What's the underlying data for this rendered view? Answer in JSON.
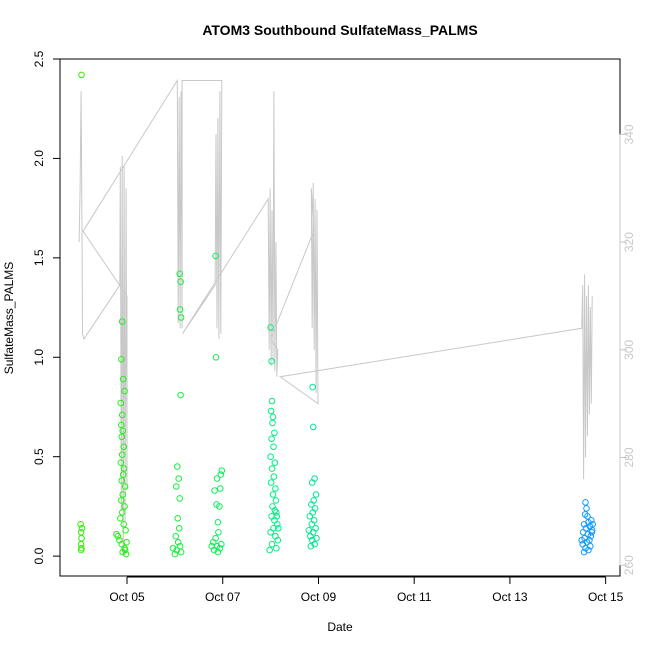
{
  "chart_data": {
    "type": "scatter",
    "title": "ATOM3 Southbound SulfateMass_PALMS",
    "xlabel": "Date",
    "ylabel": "SulfateMass_PALMS",
    "x_axis": {
      "unit": "days since Oct 01",
      "range": [
        3.6,
        15.3
      ],
      "ticks": [
        {
          "value": 5,
          "label": "Oct 05"
        },
        {
          "value": 7,
          "label": "Oct 07"
        },
        {
          "value": 9,
          "label": "Oct 09"
        },
        {
          "value": 11,
          "label": "Oct 11"
        },
        {
          "value": 13,
          "label": "Oct 13"
        },
        {
          "value": 15,
          "label": "Oct 15"
        }
      ]
    },
    "y_axis_left": {
      "range": [
        -0.1,
        2.5
      ],
      "ticks": [
        {
          "value": 0.0,
          "label": "0.0"
        },
        {
          "value": 0.5,
          "label": "0.5"
        },
        {
          "value": 1.0,
          "label": "1.0"
        },
        {
          "value": 1.5,
          "label": "1.5"
        },
        {
          "value": 2.0,
          "label": "2.0"
        },
        {
          "value": 2.5,
          "label": "2.5"
        }
      ]
    },
    "y_axis_right": {
      "range": [
        258,
        354
      ],
      "color": "#c8c8c8",
      "ticks": [
        {
          "value": 260,
          "label": "260"
        },
        {
          "value": 280,
          "label": "280"
        },
        {
          "value": 300,
          "label": "300"
        },
        {
          "value": 320,
          "label": "320"
        },
        {
          "value": 340,
          "label": "340"
        }
      ]
    },
    "grid": false,
    "colors": {
      "early": "#33ee00",
      "mid": "#00ee88",
      "late": "#1199ff",
      "secondary_line": "#c8c8c8",
      "axis": "#000000"
    },
    "sulfate_points": [
      {
        "x": 4.05,
        "y": 2.42
      },
      {
        "x": 4.03,
        "y": 0.16
      },
      {
        "x": 4.04,
        "y": 0.12
      },
      {
        "x": 4.05,
        "y": 0.09
      },
      {
        "x": 4.04,
        "y": 0.06
      },
      {
        "x": 4.05,
        "y": 0.04
      },
      {
        "x": 4.06,
        "y": 0.14
      },
      {
        "x": 4.04,
        "y": 0.03
      },
      {
        "x": 4.9,
        "y": 1.18
      },
      {
        "x": 4.88,
        "y": 0.99
      },
      {
        "x": 4.92,
        "y": 0.89
      },
      {
        "x": 4.95,
        "y": 0.83
      },
      {
        "x": 4.87,
        "y": 0.77
      },
      {
        "x": 4.9,
        "y": 0.71
      },
      {
        "x": 4.88,
        "y": 0.66
      },
      {
        "x": 4.91,
        "y": 0.63
      },
      {
        "x": 4.89,
        "y": 0.6
      },
      {
        "x": 4.93,
        "y": 0.55
      },
      {
        "x": 4.9,
        "y": 0.51
      },
      {
        "x": 4.87,
        "y": 0.47
      },
      {
        "x": 4.94,
        "y": 0.44
      },
      {
        "x": 4.92,
        "y": 0.41
      },
      {
        "x": 4.89,
        "y": 0.38
      },
      {
        "x": 4.96,
        "y": 0.35
      },
      {
        "x": 4.91,
        "y": 0.31
      },
      {
        "x": 4.88,
        "y": 0.28
      },
      {
        "x": 4.95,
        "y": 0.25
      },
      {
        "x": 4.9,
        "y": 0.22
      },
      {
        "x": 4.86,
        "y": 0.19
      },
      {
        "x": 4.93,
        "y": 0.16
      },
      {
        "x": 4.97,
        "y": 0.13
      },
      {
        "x": 4.81,
        "y": 0.1
      },
      {
        "x": 4.84,
        "y": 0.08
      },
      {
        "x": 4.89,
        "y": 0.06
      },
      {
        "x": 4.95,
        "y": 0.04
      },
      {
        "x": 4.91,
        "y": 0.02
      },
      {
        "x": 4.98,
        "y": 0.01
      },
      {
        "x": 4.78,
        "y": 0.11
      },
      {
        "x": 4.99,
        "y": 0.07
      },
      {
        "x": 4.96,
        "y": 0.03
      },
      {
        "x": 6.1,
        "y": 1.42
      },
      {
        "x": 6.12,
        "y": 1.38
      },
      {
        "x": 6.11,
        "y": 1.24
      },
      {
        "x": 6.13,
        "y": 1.2
      },
      {
        "x": 6.12,
        "y": 0.81
      },
      {
        "x": 6.05,
        "y": 0.45
      },
      {
        "x": 6.08,
        "y": 0.39
      },
      {
        "x": 6.03,
        "y": 0.35
      },
      {
        "x": 6.1,
        "y": 0.29
      },
      {
        "x": 6.06,
        "y": 0.19
      },
      {
        "x": 6.09,
        "y": 0.14
      },
      {
        "x": 6.02,
        "y": 0.1
      },
      {
        "x": 6.07,
        "y": 0.07
      },
      {
        "x": 6.11,
        "y": 0.05
      },
      {
        "x": 6.04,
        "y": 0.03
      },
      {
        "x": 6.0,
        "y": 0.01
      },
      {
        "x": 6.13,
        "y": 0.02
      },
      {
        "x": 5.96,
        "y": 0.04
      },
      {
        "x": 6.85,
        "y": 1.51
      },
      {
        "x": 6.86,
        "y": 1.0
      },
      {
        "x": 6.98,
        "y": 0.43
      },
      {
        "x": 6.96,
        "y": 0.41
      },
      {
        "x": 6.88,
        "y": 0.39
      },
      {
        "x": 6.95,
        "y": 0.34
      },
      {
        "x": 6.83,
        "y": 0.33
      },
      {
        "x": 6.87,
        "y": 0.26
      },
      {
        "x": 6.93,
        "y": 0.25
      },
      {
        "x": 6.9,
        "y": 0.17
      },
      {
        "x": 6.91,
        "y": 0.12
      },
      {
        "x": 6.85,
        "y": 0.09
      },
      {
        "x": 6.8,
        "y": 0.07
      },
      {
        "x": 6.88,
        "y": 0.05
      },
      {
        "x": 6.94,
        "y": 0.04
      },
      {
        "x": 6.82,
        "y": 0.03
      },
      {
        "x": 6.9,
        "y": 0.02
      },
      {
        "x": 6.97,
        "y": 0.06
      },
      {
        "x": 6.77,
        "y": 0.05
      },
      {
        "x": 8.0,
        "y": 1.15
      },
      {
        "x": 8.02,
        "y": 0.98
      },
      {
        "x": 8.03,
        "y": 0.78
      },
      {
        "x": 8.01,
        "y": 0.73
      },
      {
        "x": 8.05,
        "y": 0.7
      },
      {
        "x": 8.04,
        "y": 0.67
      },
      {
        "x": 8.08,
        "y": 0.62
      },
      {
        "x": 8.02,
        "y": 0.59
      },
      {
        "x": 8.06,
        "y": 0.55
      },
      {
        "x": 8.0,
        "y": 0.5
      },
      {
        "x": 8.09,
        "y": 0.47
      },
      {
        "x": 8.03,
        "y": 0.44
      },
      {
        "x": 8.07,
        "y": 0.4
      },
      {
        "x": 8.01,
        "y": 0.37
      },
      {
        "x": 8.1,
        "y": 0.34
      },
      {
        "x": 8.05,
        "y": 0.31
      },
      {
        "x": 8.11,
        "y": 0.28
      },
      {
        "x": 8.04,
        "y": 0.25
      },
      {
        "x": 8.12,
        "y": 0.22
      },
      {
        "x": 8.02,
        "y": 0.2
      },
      {
        "x": 8.08,
        "y": 0.18
      },
      {
        "x": 8.14,
        "y": 0.16
      },
      {
        "x": 8.06,
        "y": 0.14
      },
      {
        "x": 8.0,
        "y": 0.12
      },
      {
        "x": 8.1,
        "y": 0.1
      },
      {
        "x": 8.15,
        "y": 0.08
      },
      {
        "x": 8.03,
        "y": 0.06
      },
      {
        "x": 8.12,
        "y": 0.04
      },
      {
        "x": 7.98,
        "y": 0.03
      },
      {
        "x": 8.16,
        "y": 0.14
      },
      {
        "x": 8.13,
        "y": 0.2
      },
      {
        "x": 8.09,
        "y": 0.23
      },
      {
        "x": 8.88,
        "y": 0.85
      },
      {
        "x": 8.89,
        "y": 0.65
      },
      {
        "x": 8.92,
        "y": 0.39
      },
      {
        "x": 8.87,
        "y": 0.37
      },
      {
        "x": 8.95,
        "y": 0.31
      },
      {
        "x": 8.9,
        "y": 0.28
      },
      {
        "x": 8.85,
        "y": 0.26
      },
      {
        "x": 8.93,
        "y": 0.24
      },
      {
        "x": 8.88,
        "y": 0.22
      },
      {
        "x": 8.82,
        "y": 0.2
      },
      {
        "x": 8.91,
        "y": 0.18
      },
      {
        "x": 8.86,
        "y": 0.16
      },
      {
        "x": 8.94,
        "y": 0.14
      },
      {
        "x": 8.8,
        "y": 0.13
      },
      {
        "x": 8.89,
        "y": 0.12
      },
      {
        "x": 8.83,
        "y": 0.1
      },
      {
        "x": 8.96,
        "y": 0.09
      },
      {
        "x": 8.87,
        "y": 0.08
      },
      {
        "x": 8.92,
        "y": 0.06
      },
      {
        "x": 8.84,
        "y": 0.05
      },
      {
        "x": 14.58,
        "y": 0.27
      },
      {
        "x": 14.6,
        "y": 0.24
      },
      {
        "x": 14.57,
        "y": 0.21
      },
      {
        "x": 14.62,
        "y": 0.2
      },
      {
        "x": 14.7,
        "y": 0.18
      },
      {
        "x": 14.64,
        "y": 0.17
      },
      {
        "x": 14.55,
        "y": 0.16
      },
      {
        "x": 14.67,
        "y": 0.15
      },
      {
        "x": 14.59,
        "y": 0.14
      },
      {
        "x": 14.72,
        "y": 0.13
      },
      {
        "x": 14.53,
        "y": 0.12
      },
      {
        "x": 14.63,
        "y": 0.11
      },
      {
        "x": 14.69,
        "y": 0.1
      },
      {
        "x": 14.56,
        "y": 0.09
      },
      {
        "x": 14.66,
        "y": 0.08
      },
      {
        "x": 14.61,
        "y": 0.07
      },
      {
        "x": 14.52,
        "y": 0.06
      },
      {
        "x": 14.68,
        "y": 0.05
      },
      {
        "x": 14.58,
        "y": 0.04
      },
      {
        "x": 14.64,
        "y": 0.03
      },
      {
        "x": 14.55,
        "y": 0.02
      },
      {
        "x": 14.71,
        "y": 0.12
      },
      {
        "x": 14.5,
        "y": 0.08
      },
      {
        "x": 14.73,
        "y": 0.16
      }
    ],
    "secondary_line": [
      {
        "x": 4.0,
        "y": 320
      },
      {
        "x": 4.02,
        "y": 330
      },
      {
        "x": 4.04,
        "y": 348
      },
      {
        "x": 4.06,
        "y": 322
      },
      {
        "x": 4.07,
        "y": 303
      },
      {
        "x": 4.1,
        "y": 302
      },
      {
        "x": 4.85,
        "y": 312
      },
      {
        "x": 4.86,
        "y": 334
      },
      {
        "x": 4.88,
        "y": 270
      },
      {
        "x": 4.9,
        "y": 336
      },
      {
        "x": 4.92,
        "y": 262
      },
      {
        "x": 4.94,
        "y": 334
      },
      {
        "x": 4.96,
        "y": 268
      },
      {
        "x": 4.98,
        "y": 330
      },
      {
        "x": 5.0,
        "y": 274
      },
      {
        "x": 5.0,
        "y": 310
      },
      {
        "x": 4.08,
        "y": 322
      },
      {
        "x": 6.05,
        "y": 350
      },
      {
        "x": 6.07,
        "y": 305
      },
      {
        "x": 6.09,
        "y": 347
      },
      {
        "x": 6.11,
        "y": 304
      },
      {
        "x": 6.13,
        "y": 348
      },
      {
        "x": 6.15,
        "y": 304
      },
      {
        "x": 6.15,
        "y": 350
      },
      {
        "x": 6.98,
        "y": 350
      },
      {
        "x": 6.96,
        "y": 303
      },
      {
        "x": 6.94,
        "y": 348
      },
      {
        "x": 6.92,
        "y": 302
      },
      {
        "x": 6.9,
        "y": 343
      },
      {
        "x": 6.88,
        "y": 304
      },
      {
        "x": 6.86,
        "y": 340
      },
      {
        "x": 6.84,
        "y": 312
      },
      {
        "x": 6.16,
        "y": 303
      },
      {
        "x": 7.95,
        "y": 328
      },
      {
        "x": 7.97,
        "y": 300
      },
      {
        "x": 7.99,
        "y": 330
      },
      {
        "x": 8.01,
        "y": 297
      },
      {
        "x": 8.03,
        "y": 326
      },
      {
        "x": 8.05,
        "y": 298
      },
      {
        "x": 8.07,
        "y": 348
      },
      {
        "x": 8.09,
        "y": 296
      },
      {
        "x": 8.11,
        "y": 320
      },
      {
        "x": 8.13,
        "y": 295
      },
      {
        "x": 8.15,
        "y": 300
      },
      {
        "x": 8.0,
        "y": 302
      },
      {
        "x": 8.9,
        "y": 322
      },
      {
        "x": 8.85,
        "y": 330
      },
      {
        "x": 8.87,
        "y": 304
      },
      {
        "x": 8.89,
        "y": 331
      },
      {
        "x": 8.91,
        "y": 300
      },
      {
        "x": 8.93,
        "y": 328
      },
      {
        "x": 8.95,
        "y": 292
      },
      {
        "x": 8.97,
        "y": 326
      },
      {
        "x": 8.99,
        "y": 290
      },
      {
        "x": 8.2,
        "y": 295
      },
      {
        "x": 14.5,
        "y": 304
      },
      {
        "x": 14.52,
        "y": 312
      },
      {
        "x": 14.54,
        "y": 276
      },
      {
        "x": 14.56,
        "y": 314
      },
      {
        "x": 14.58,
        "y": 280
      },
      {
        "x": 14.6,
        "y": 310
      },
      {
        "x": 14.62,
        "y": 284
      },
      {
        "x": 14.64,
        "y": 312
      },
      {
        "x": 14.66,
        "y": 288
      },
      {
        "x": 14.68,
        "y": 308
      },
      {
        "x": 14.7,
        "y": 290
      },
      {
        "x": 14.72,
        "y": 310
      }
    ]
  }
}
